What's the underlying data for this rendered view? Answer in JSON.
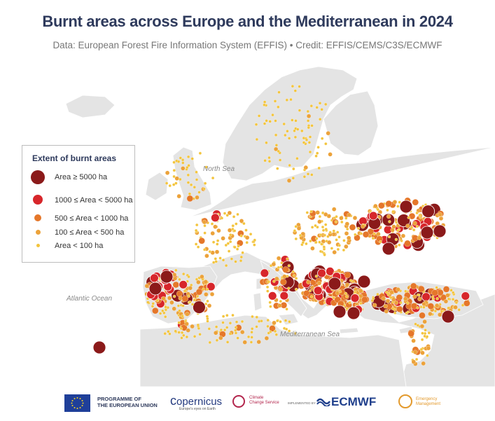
{
  "header": {
    "title": "Burnt areas across Europe and the Mediterranean in 2024",
    "subtitle": "Data: European Forest Fire Information System (EFFIS) • Credit: EFFIS/CEMS/C3S/ECMWF"
  },
  "map": {
    "labels": {
      "north_sea": "North Sea",
      "atlantic": "Atlantic Ocean",
      "mediterranean": "Mediterranean Sea"
    },
    "colors": {
      "land": "#e4e4e4",
      "sea": "#ffffff"
    }
  },
  "legend": {
    "title": "Extent of burnt areas",
    "classes": [
      {
        "label": "Area ≥ 5000 ha",
        "color": "#8b1a1a"
      },
      {
        "label": "1000 ≤ Area < 5000 ha",
        "color": "#d7262b"
      },
      {
        "label": "500 ≤ Area < 1000 ha",
        "color": "#e5772a"
      },
      {
        "label": "100 ≤ Area < 500 ha",
        "color": "#eca23a"
      },
      {
        "label": "Area < 100 ha",
        "color": "#f3c43c"
      }
    ]
  },
  "footer": {
    "eu_line1": "PROGRAMME OF",
    "eu_line2": "THE EUROPEAN UNION",
    "copernicus": "opernicus",
    "copernicus_sub": "Europe's eyes on Earth",
    "c3s_line1": "Climate",
    "c3s_line2": "Change Service",
    "implemented_by": "IMPLEMENTED BY",
    "ecmwf": "ECMWF",
    "ems_line1": "Emergency",
    "ems_line2": "Management"
  }
}
